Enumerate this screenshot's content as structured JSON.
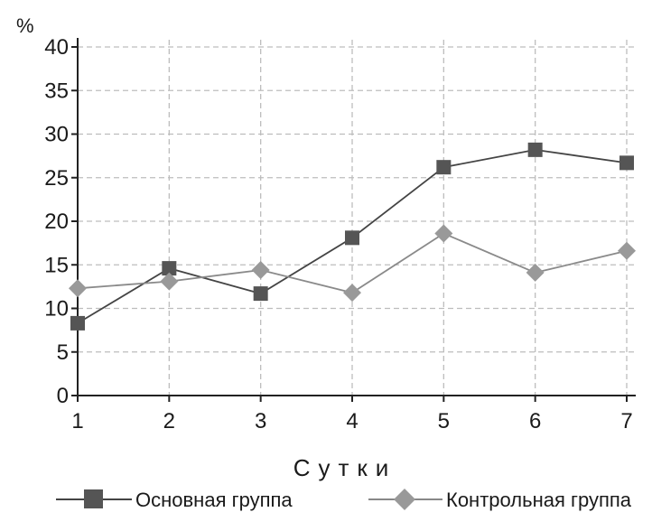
{
  "chart_data": {
    "type": "line",
    "xlabel": "Сутки",
    "ylabel": "%",
    "x": [
      1,
      2,
      3,
      4,
      5,
      6,
      7
    ],
    "xlim": [
      1,
      7
    ],
    "ylim": [
      0,
      40
    ],
    "yticks": [
      0,
      5,
      10,
      15,
      20,
      25,
      30,
      35,
      40
    ],
    "grid": true,
    "legend_position": "bottom",
    "series": [
      {
        "name": "Основная группа",
        "marker": "square",
        "color": "#555555",
        "values": [
          8.3,
          14.6,
          11.7,
          18.1,
          26.2,
          28.2,
          26.7
        ]
      },
      {
        "name": "Контрольная группа",
        "marker": "diamond",
        "color": "#999999",
        "values": [
          12.3,
          13.1,
          14.4,
          11.8,
          18.6,
          14.1,
          16.6
        ]
      }
    ]
  }
}
